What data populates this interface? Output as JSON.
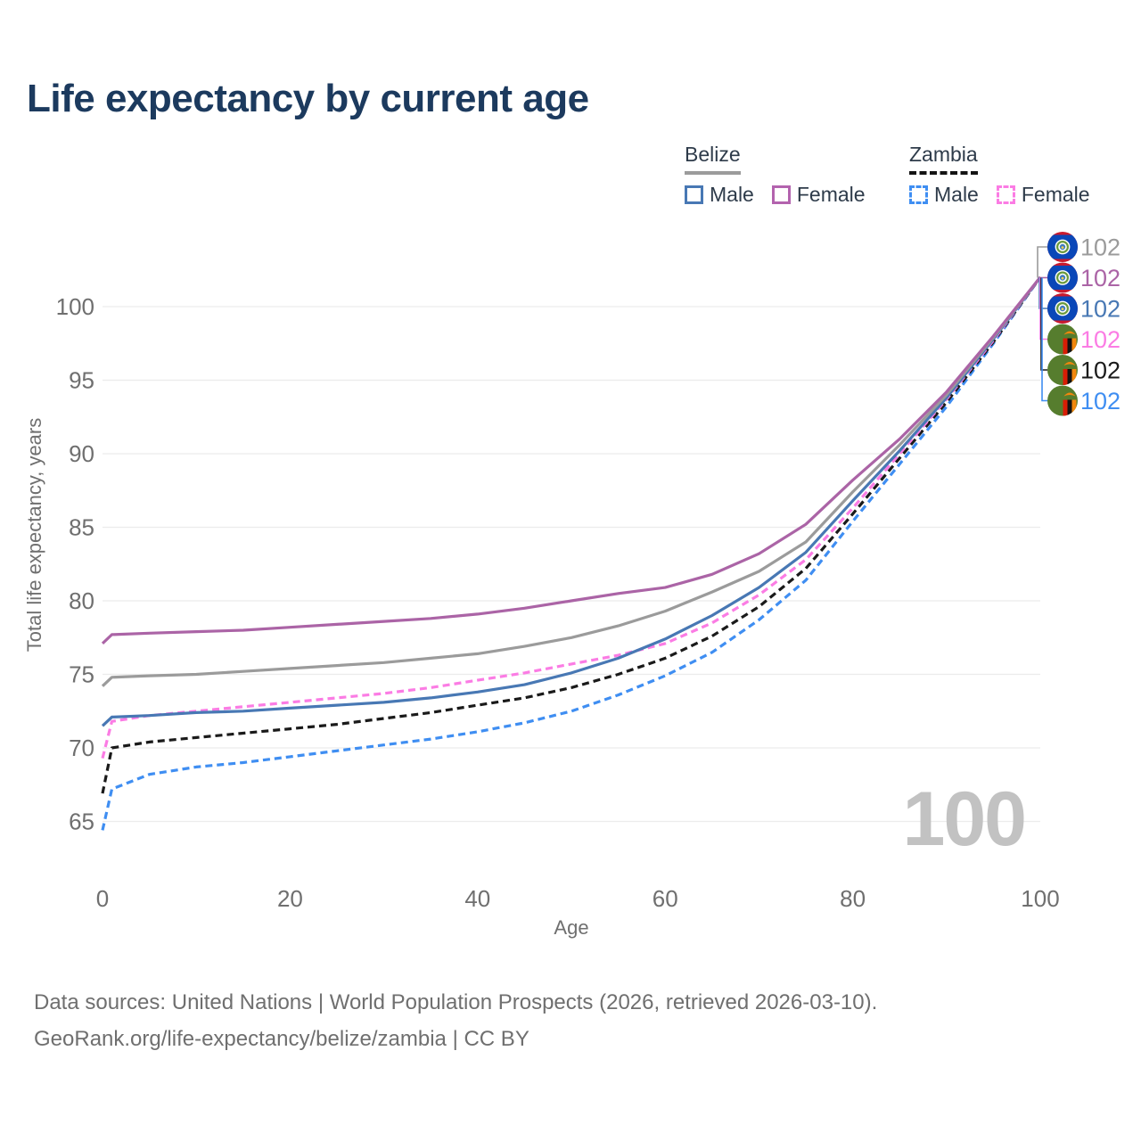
{
  "title": "Life expectancy by current age",
  "legend": {
    "belize": {
      "label": "Belize",
      "male_label": "Male",
      "female_label": "Female"
    },
    "zambia": {
      "label": "Zambia",
      "male_label": "Male",
      "female_label": "Female"
    }
  },
  "footer": {
    "line1": "Data sources: United Nations | World Population Prospects (2026, retrieved 2026-03-10).",
    "line2": "GeoRank.org/life-expectancy/belize/zambia | CC BY"
  },
  "colors": {
    "title_text": "#1c3a5e",
    "axis_text": "#6f6f6f",
    "gridline": "#ececec",
    "watermark": "#c2c2c2",
    "belize_underline": "#9b9b9b",
    "zambia_underline": "#141414"
  },
  "chart_data": {
    "type": "line",
    "title": "Life expectancy by current age",
    "xlabel": "Age",
    "ylabel": "Total life expectancy, years",
    "watermark": "100",
    "xticks": [
      0,
      20,
      40,
      60,
      80,
      100
    ],
    "yticks": [
      65,
      70,
      75,
      80,
      85,
      90,
      95,
      100
    ],
    "xlim": [
      0,
      100
    ],
    "ylim": [
      62,
      103
    ],
    "grid": "horizontal",
    "legend_position": "top-right",
    "ages": [
      0,
      1,
      5,
      10,
      15,
      20,
      25,
      30,
      35,
      40,
      45,
      50,
      55,
      60,
      65,
      70,
      75,
      80,
      85,
      90,
      95,
      100
    ],
    "series": [
      {
        "id": "belize-all",
        "name": "Belize",
        "country": "Belize",
        "sex": "All",
        "color": "#9b9b9b",
        "dashed": false,
        "flag": "belize",
        "end_label": "102",
        "values": [
          74.2,
          74.8,
          74.9,
          75.0,
          75.2,
          75.4,
          75.6,
          75.8,
          76.1,
          76.4,
          76.9,
          77.5,
          78.3,
          79.3,
          80.6,
          82.0,
          84.0,
          87.4,
          90.6,
          94.0,
          97.9,
          102
        ]
      },
      {
        "id": "belize-female",
        "name": "Belize Female",
        "country": "Belize",
        "sex": "Female",
        "color": "#ab64a6",
        "dashed": false,
        "flag": "belize",
        "end_label": "102",
        "values": [
          77.1,
          77.7,
          77.8,
          77.9,
          78.0,
          78.2,
          78.4,
          78.6,
          78.8,
          79.1,
          79.5,
          80.0,
          80.5,
          80.9,
          81.8,
          83.2,
          85.2,
          88.2,
          91.0,
          94.2,
          98.0,
          102
        ]
      },
      {
        "id": "belize-male",
        "name": "Belize Male",
        "country": "Belize",
        "sex": "Male",
        "color": "#4878b4",
        "dashed": false,
        "flag": "belize",
        "end_label": "102",
        "values": [
          71.5,
          72.1,
          72.2,
          72.4,
          72.5,
          72.7,
          72.9,
          73.1,
          73.4,
          73.8,
          74.3,
          75.1,
          76.1,
          77.4,
          79.0,
          80.9,
          83.3,
          86.8,
          90.2,
          93.8,
          97.8,
          102
        ]
      },
      {
        "id": "zambia-female",
        "name": "Zambia Female",
        "country": "Zambia",
        "sex": "Female",
        "color": "#fb7ce4",
        "dashed": true,
        "flag": "zambia",
        "end_label": "102",
        "values": [
          69.3,
          71.8,
          72.2,
          72.5,
          72.8,
          73.1,
          73.4,
          73.7,
          74.1,
          74.6,
          75.1,
          75.7,
          76.3,
          77.1,
          78.5,
          80.4,
          82.8,
          86.3,
          90.0,
          93.7,
          97.7,
          102
        ]
      },
      {
        "id": "zambia-all",
        "name": "Zambia",
        "country": "Zambia",
        "sex": "All",
        "color": "#1a1a1a",
        "dashed": true,
        "flag": "zambia",
        "end_label": "102",
        "values": [
          66.9,
          70.0,
          70.4,
          70.7,
          71.0,
          71.3,
          71.6,
          72.0,
          72.4,
          72.9,
          73.4,
          74.1,
          75.0,
          76.1,
          77.6,
          79.6,
          82.2,
          85.9,
          89.7,
          93.5,
          97.6,
          102
        ]
      },
      {
        "id": "zambia-male",
        "name": "Zambia Male",
        "country": "Zambia",
        "sex": "Male",
        "color": "#3f8ef2",
        "dashed": true,
        "flag": "zambia",
        "end_label": "102",
        "values": [
          64.4,
          67.2,
          68.2,
          68.7,
          69.0,
          69.4,
          69.8,
          70.2,
          70.6,
          71.1,
          71.7,
          72.5,
          73.6,
          74.9,
          76.5,
          78.7,
          81.4,
          85.4,
          89.3,
          93.2,
          97.5,
          102
        ]
      }
    ]
  }
}
